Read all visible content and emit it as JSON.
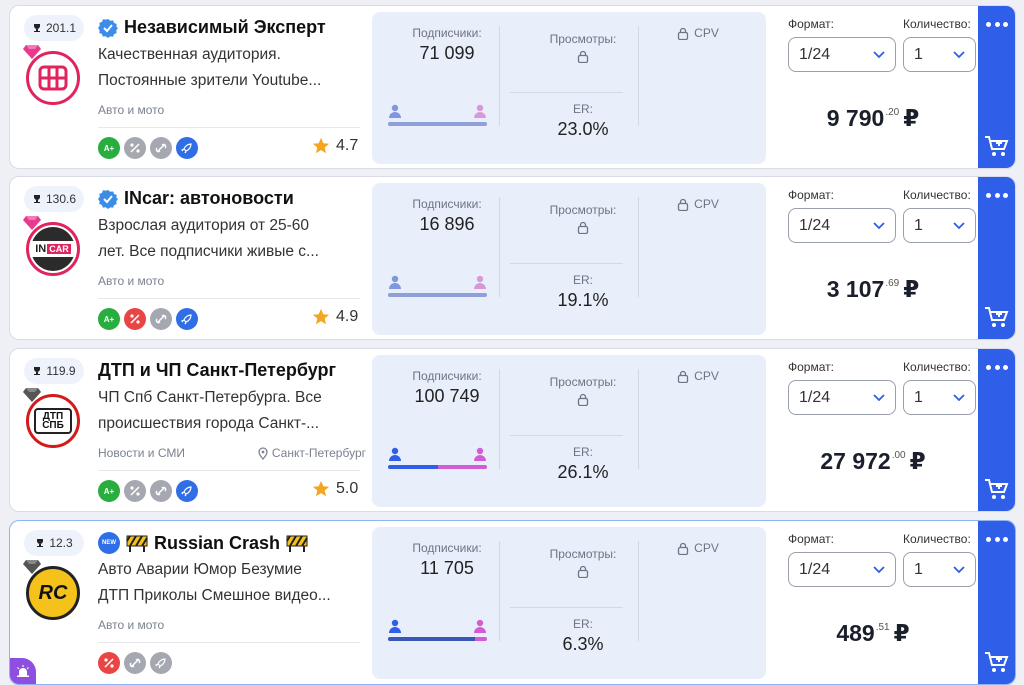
{
  "labels": {
    "subscribers": "Подписчики:",
    "views": "Просмотры:",
    "er": "ER:",
    "cpv": "CPV",
    "format": "Формат:",
    "quantity": "Количество:",
    "currency": "₽"
  },
  "cards": [
    {
      "rank": "201.1",
      "title": "Независимый Эксперт",
      "desc_line1": "Качественная аудитория.",
      "desc_line2": "Постоянные зрители Youtube...",
      "category": "Авто и мото",
      "badges": [
        "A+",
        "%",
        "link",
        "rocket"
      ],
      "rating": "4.7",
      "subscribers": "71 099",
      "er": "23.0%",
      "gender_male": 0.5,
      "format": "1/24",
      "quantity": "1",
      "price_main": "9 790",
      "price_cents": ".20"
    },
    {
      "rank": "130.6",
      "title": "INcar: автоновости",
      "desc_line1": "Взрослая аудитория от 25-60",
      "desc_line2": "лет. Все подписчики живые с...",
      "category": "Авто и мото",
      "badges": [
        "A+",
        "%",
        "link",
        "rocket"
      ],
      "rating": "4.9",
      "subscribers": "16 896",
      "er": "19.1%",
      "gender_male": 0.5,
      "format": "1/24",
      "quantity": "1",
      "price_main": "3 107",
      "price_cents": ".69"
    },
    {
      "rank": "119.9",
      "title": "ДТП и ЧП Санкт-Петербург",
      "desc_line1": "ЧП Спб Санкт-Петербурга. Все",
      "desc_line2": "происшествия города Санкт-...",
      "category": "Новости и СМИ",
      "geo": "Санкт-Петербург",
      "badges": [
        "A+",
        "%",
        "link",
        "rocket"
      ],
      "rating": "5.0",
      "subscribers": "100 749",
      "er": "26.1%",
      "gender_male": 0.5,
      "format": "1/24",
      "quantity": "1",
      "price_main": "27 972",
      "price_cents": ".00"
    },
    {
      "rank": "12.3",
      "title": "Russian Crash",
      "new_label": "NEW",
      "desc_line1": "Авто Аварии Юмор Безумие",
      "desc_line2": "ДТП Приколы Смешное видео...",
      "category": "Авто и мото",
      "badges": [
        "%",
        "link",
        "rocket"
      ],
      "subscribers": "11 705",
      "er": "6.3%",
      "gender_male": 0.88,
      "format": "1/24",
      "quantity": "1",
      "price_main": "489",
      "price_cents": ".51"
    }
  ]
}
